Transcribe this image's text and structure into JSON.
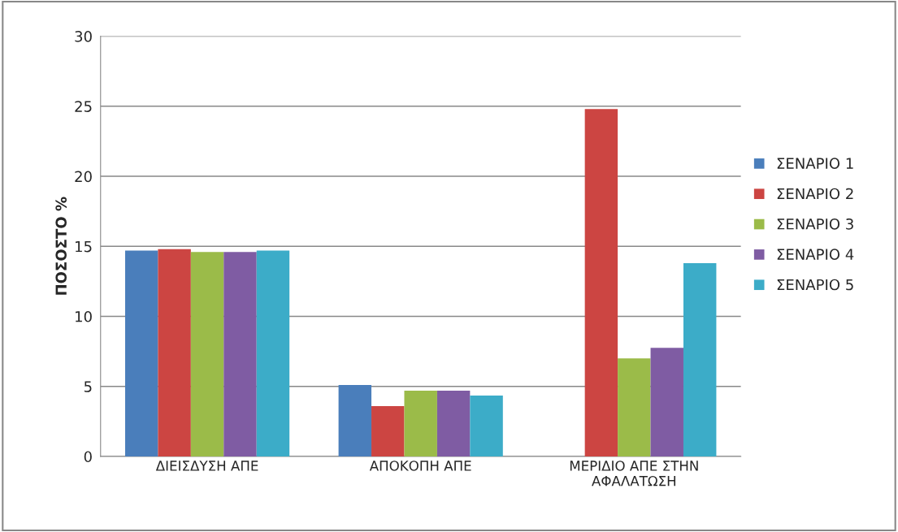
{
  "chart_data": {
    "type": "bar",
    "ylabel": "ΠΟΣΟΣΤΟ %",
    "categories": [
      "ΔΙΕΙΣΔΥΣΗ ΑΠΕ",
      "ΑΠΟΚΟΠΗ ΑΠΕ",
      "ΜΕΡΙΔΙΟ ΑΠΕ ΣΤΗΝ\nΑΦΑΛΑΤΩΣΗ"
    ],
    "series": [
      {
        "name": "ΣΕΝΑΡΙΟ 1",
        "color": "#4a7ebb",
        "values": [
          14.7,
          5.1,
          null
        ]
      },
      {
        "name": "ΣΕΝΑΡΙΟ 2",
        "color": "#cc4542",
        "values": [
          14.8,
          3.6,
          24.8
        ]
      },
      {
        "name": "ΣΕΝΑΡΙΟ 3",
        "color": "#9bbb49",
        "values": [
          14.6,
          4.7,
          7.0
        ]
      },
      {
        "name": "ΣΕΝΑΡΙΟ 4",
        "color": "#7f5ca3",
        "values": [
          14.6,
          4.7,
          7.75
        ]
      },
      {
        "name": "ΣΕΝΑΡΙΟ 5",
        "color": "#3cacc8",
        "values": [
          14.7,
          4.35,
          13.8
        ]
      }
    ],
    "ylim": [
      0,
      30
    ],
    "yticks": [
      0,
      5,
      10,
      15,
      20,
      25,
      30
    ],
    "grid": "y",
    "legend": "right"
  }
}
